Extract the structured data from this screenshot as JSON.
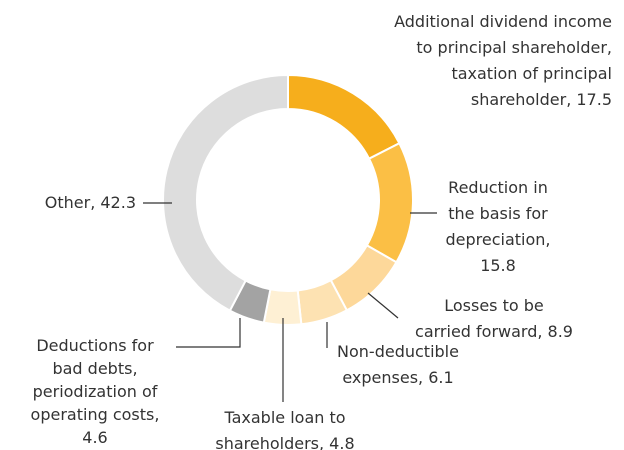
{
  "chart_data": {
    "type": "donut",
    "labels": [
      [
        "Additional dividend income",
        "to principal shareholder,",
        "taxation of principal",
        "shareholder, 17.5"
      ],
      [
        "Reduction in",
        "the basis for",
        "depreciation,",
        "15.8"
      ],
      [
        "Losses to be",
        "carried forward, 8.9"
      ],
      [
        "Non-deductible",
        "expenses, 6.1"
      ],
      [
        "Taxable loan to",
        "shareholders, 4.8"
      ],
      [
        "Deductions for",
        "bad debts,",
        "periodization of",
        "operating costs,",
        "4.6"
      ],
      [
        "Other, 42.3"
      ]
    ],
    "values": [
      17.5,
      15.8,
      8.9,
      6.1,
      4.8,
      4.6,
      42.3
    ],
    "colors": [
      "#f6ae1c",
      "#fbbf45",
      "#fdd89a",
      "#fde2b2",
      "#fef0d4",
      "#a3a3a3",
      "#dddddd"
    ]
  }
}
